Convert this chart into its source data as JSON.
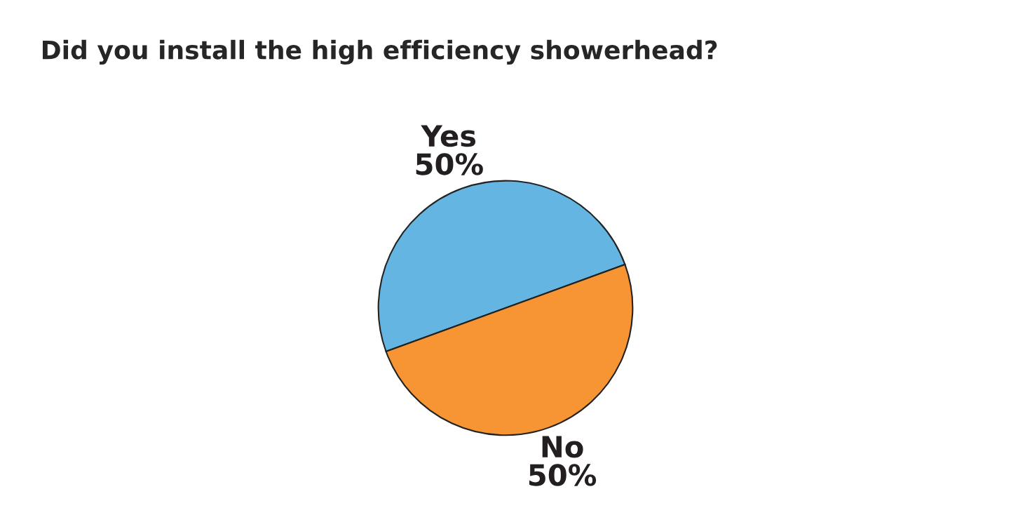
{
  "chart_data": {
    "type": "pie",
    "title": "Did you install the high efficiency showerhead?",
    "categories": [
      "Yes",
      "No"
    ],
    "values": [
      50,
      50
    ],
    "value_labels": [
      "50%",
      "50%"
    ],
    "colors": [
      "#64b5e1",
      "#f79433"
    ]
  }
}
